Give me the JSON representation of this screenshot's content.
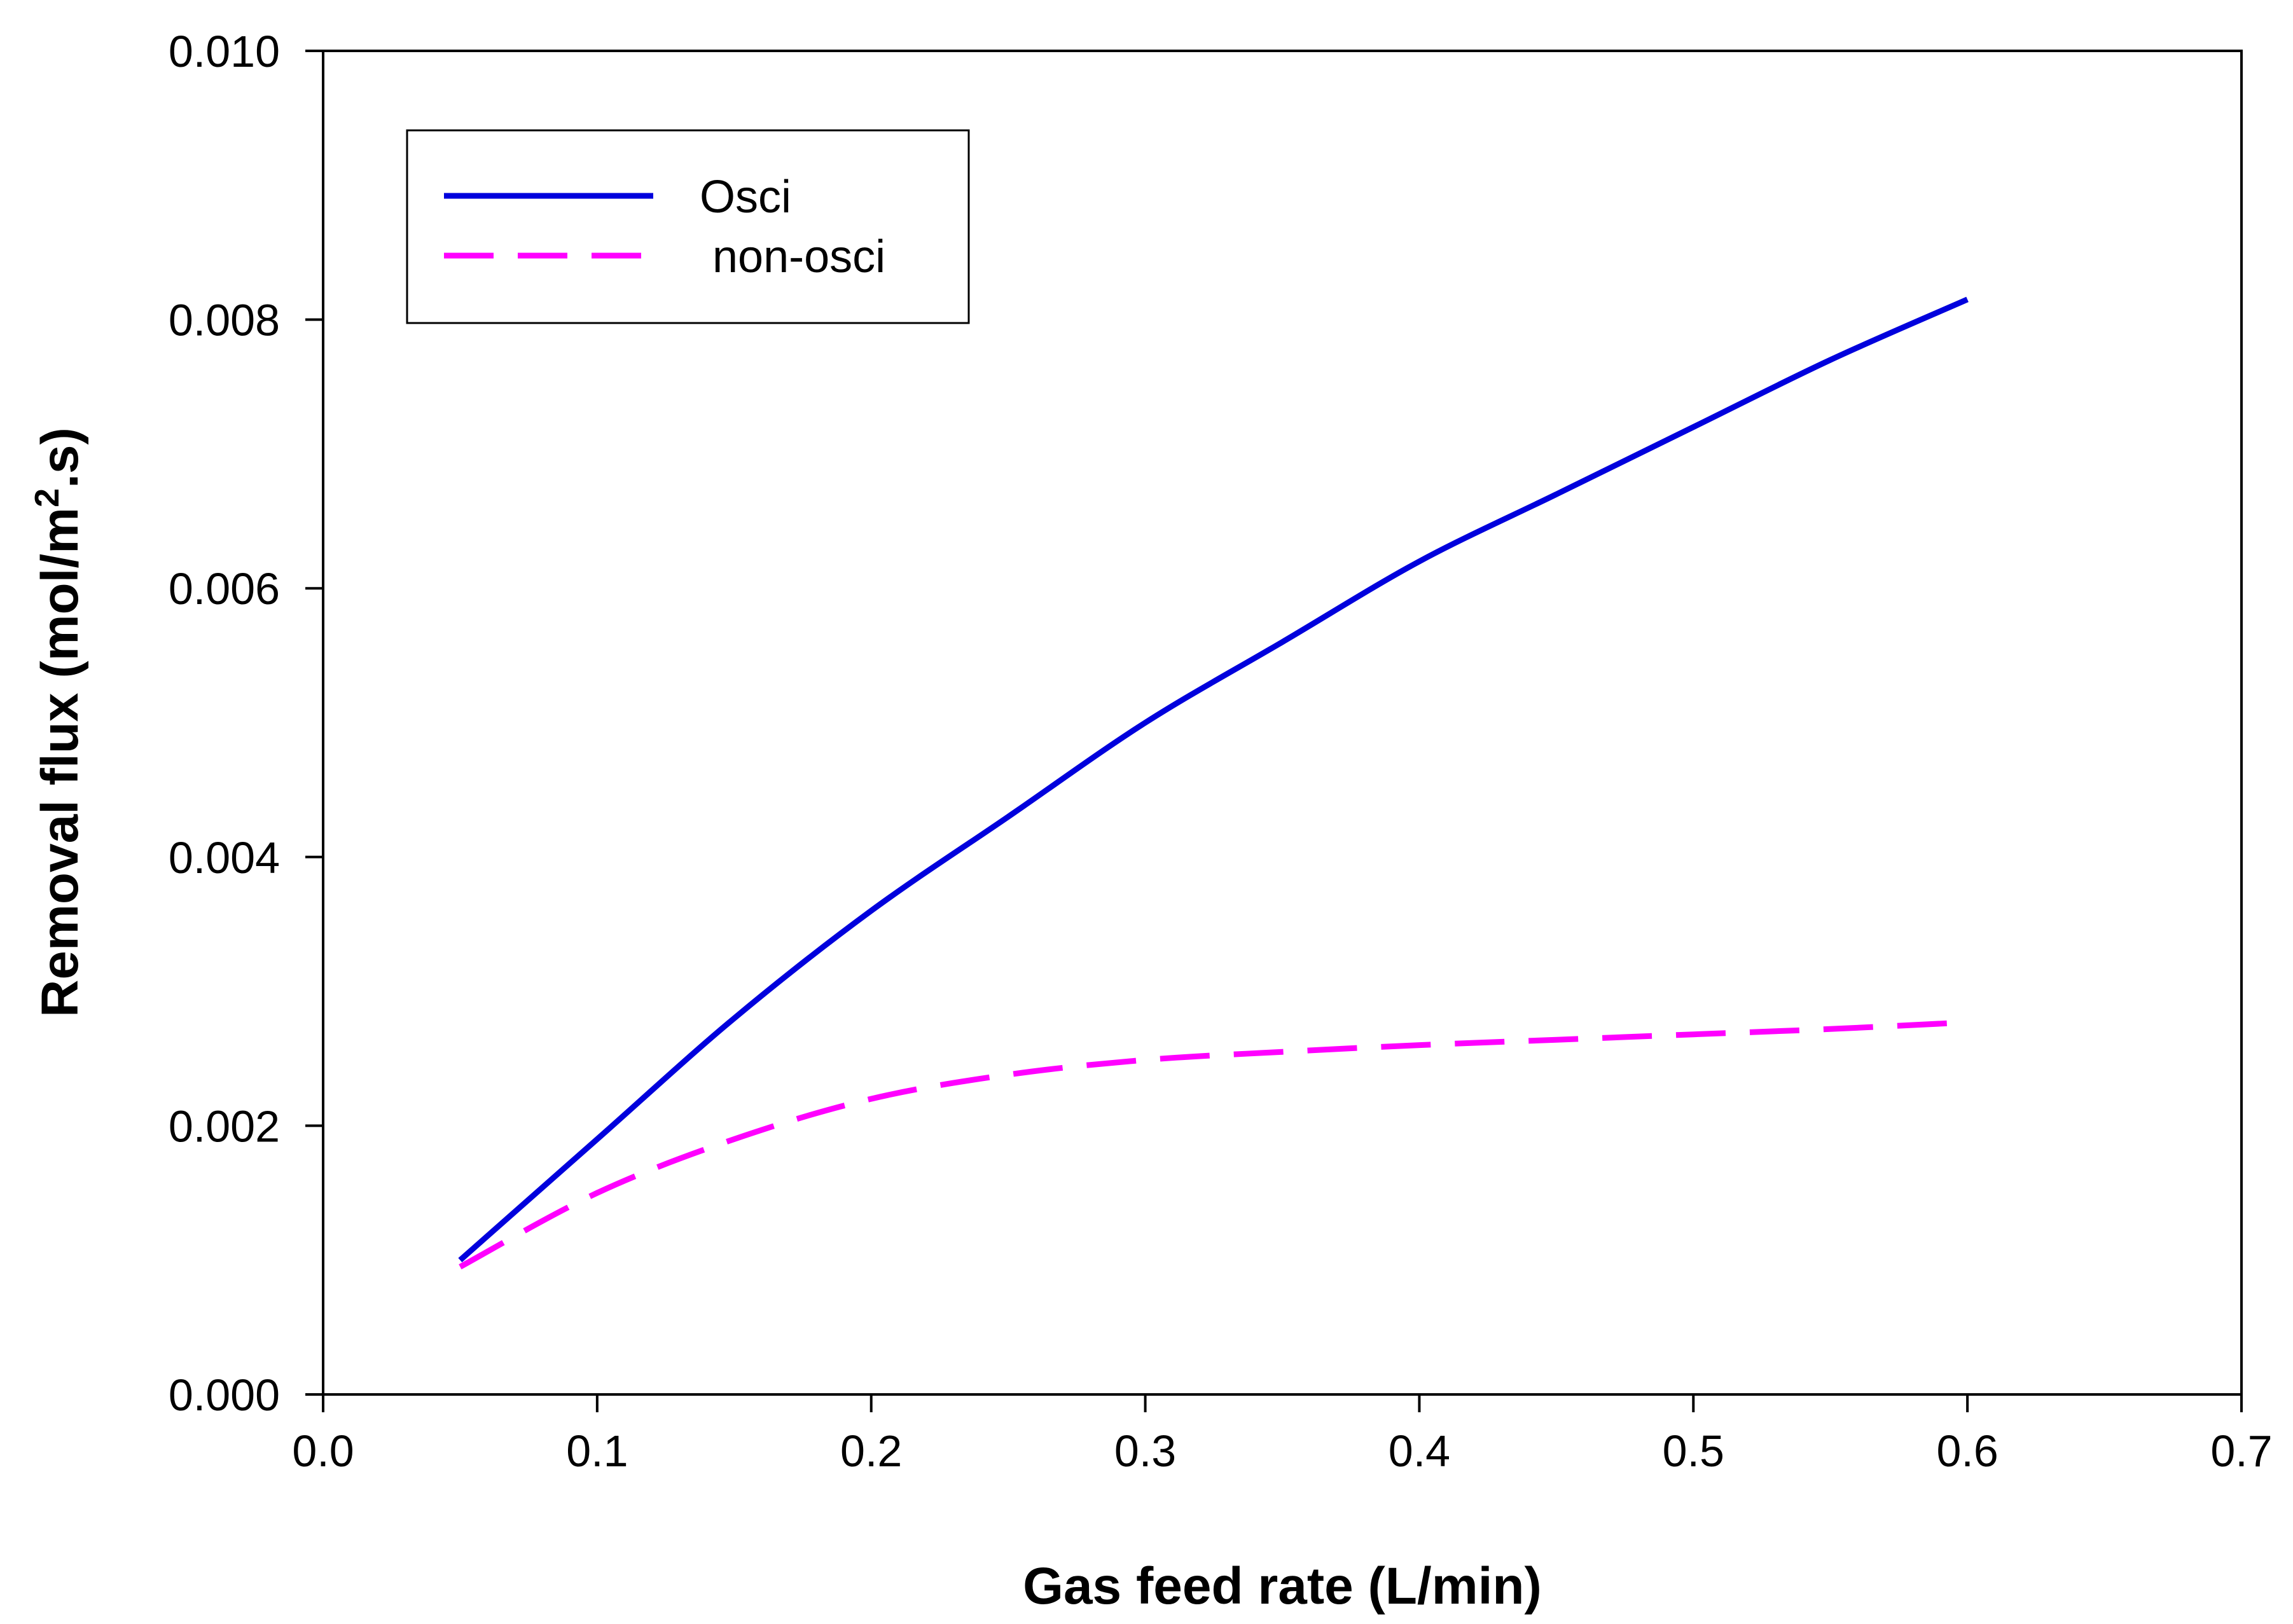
{
  "chart_data": {
    "type": "line",
    "title": "",
    "xlabel": "Gas feed rate (L/min)",
    "ylabel": {
      "prefix": "Removal flux (mol/m",
      "superscript": "2",
      "suffix": ".s)"
    },
    "xlim": [
      0.0,
      0.7
    ],
    "ylim": [
      0.0,
      0.01
    ],
    "x_ticks": [
      {
        "value": 0.0,
        "label": "0.0"
      },
      {
        "value": 0.1,
        "label": "0.1"
      },
      {
        "value": 0.2,
        "label": "0.2"
      },
      {
        "value": 0.3,
        "label": "0.3"
      },
      {
        "value": 0.4,
        "label": "0.4"
      },
      {
        "value": 0.5,
        "label": "0.5"
      },
      {
        "value": 0.6,
        "label": "0.6"
      },
      {
        "value": 0.7,
        "label": "0.7"
      }
    ],
    "y_ticks": [
      {
        "value": 0.0,
        "label": "0.000"
      },
      {
        "value": 0.002,
        "label": "0.002"
      },
      {
        "value": 0.004,
        "label": "0.004"
      },
      {
        "value": 0.006,
        "label": "0.006"
      },
      {
        "value": 0.008,
        "label": "0.008"
      },
      {
        "value": 0.01,
        "label": "0.010"
      }
    ],
    "grid": false,
    "legend_position": "top-left",
    "series": [
      {
        "name": "Osci",
        "label": "Osci",
        "color": "#0000dd",
        "style": "solid",
        "x": [
          0.05,
          0.1,
          0.15,
          0.2,
          0.25,
          0.3,
          0.35,
          0.4,
          0.45,
          0.5,
          0.55,
          0.6
        ],
        "y": [
          0.001,
          0.0019,
          0.0028,
          0.0036,
          0.0043,
          0.005,
          0.0056,
          0.0062,
          0.0067,
          0.0072,
          0.0077,
          0.00815
        ]
      },
      {
        "name": "non-osci",
        "label": " non-osci",
        "color": "#ff00ff",
        "style": "dashed",
        "x": [
          0.05,
          0.1,
          0.15,
          0.2,
          0.25,
          0.3,
          0.35,
          0.4,
          0.45,
          0.5,
          0.55,
          0.6
        ],
        "y": [
          0.00095,
          0.0015,
          0.0019,
          0.0022,
          0.00238,
          0.00249,
          0.00255,
          0.0026,
          0.00264,
          0.00268,
          0.00272,
          0.00277
        ]
      }
    ]
  }
}
